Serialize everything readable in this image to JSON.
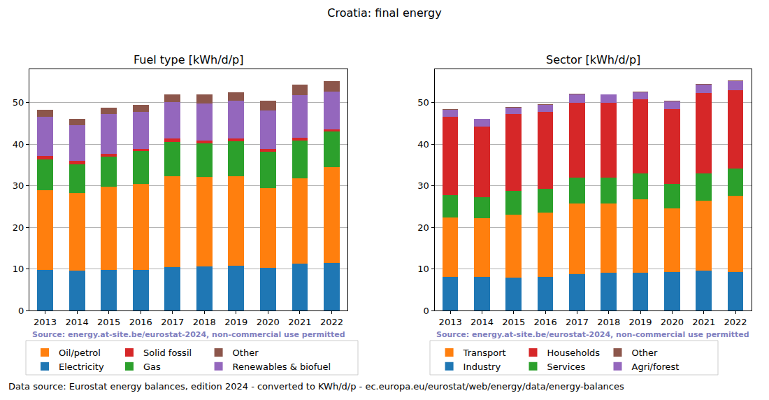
{
  "title": "Croatia: final energy",
  "footer": "Data source: Eurostat energy balances, edition 2024 - converted to KWh/d/p - ec.europa.eu/eurostat/web/energy/data/energy-balances",
  "chart_data": [
    {
      "type": "bar",
      "title": "Fuel type [kWh/d/p]",
      "stacked": true,
      "grid": true,
      "annotations": [
        "Source: energy.at-site.be/eurostat-2024, non-commercial use permitted"
      ],
      "categories": [
        "2013",
        "2014",
        "2015",
        "2016",
        "2017",
        "2018",
        "2019",
        "2020",
        "2021",
        "2022"
      ],
      "ylim": [
        0,
        58
      ],
      "yticks": [
        0,
        10,
        20,
        30,
        40,
        50
      ],
      "series": [
        {
          "name": "Electricity",
          "color": "#1f77b4",
          "values": [
            9.8,
            9.6,
            9.8,
            9.8,
            10.5,
            10.6,
            10.8,
            10.2,
            11.2,
            11.4
          ]
        },
        {
          "name": "Oil/petrol",
          "color": "#ff7f0e",
          "values": [
            19.1,
            18.6,
            20.0,
            20.6,
            21.8,
            21.5,
            21.4,
            19.2,
            20.6,
            23.0
          ]
        },
        {
          "name": "Gas",
          "color": "#2ca02c",
          "values": [
            7.4,
            7.0,
            7.2,
            7.9,
            8.3,
            8.1,
            8.5,
            8.7,
            9.0,
            8.6
          ]
        },
        {
          "name": "Solid fossil",
          "color": "#d62728",
          "values": [
            0.8,
            0.8,
            0.7,
            0.6,
            0.7,
            0.7,
            0.7,
            0.8,
            0.7,
            0.6
          ]
        },
        {
          "name": "Renewables & biofuel",
          "color": "#9467bd",
          "values": [
            9.4,
            8.5,
            9.5,
            8.8,
            8.8,
            8.9,
            9.1,
            9.1,
            10.3,
            9.1
          ]
        },
        {
          "name": "Other",
          "color": "#8c564b",
          "values": [
            1.8,
            1.5,
            1.6,
            1.8,
            1.9,
            2.1,
            2.0,
            2.4,
            2.5,
            2.5
          ]
        }
      ]
    },
    {
      "type": "bar",
      "title": "Sector [kWh/d/p]",
      "stacked": true,
      "grid": true,
      "annotations": [
        "Source: energy.at-site.be/eurostat-2024, non-commercial use permitted"
      ],
      "categories": [
        "2013",
        "2014",
        "2015",
        "2016",
        "2017",
        "2018",
        "2019",
        "2020",
        "2021",
        "2022"
      ],
      "ylim": [
        0,
        58
      ],
      "yticks": [
        0,
        10,
        20,
        30,
        40,
        50
      ],
      "series": [
        {
          "name": "Industry",
          "color": "#1f77b4",
          "values": [
            8.1,
            8.1,
            7.9,
            8.1,
            8.8,
            9.0,
            9.0,
            9.3,
            9.5,
            9.2
          ]
        },
        {
          "name": "Transport",
          "color": "#ff7f0e",
          "values": [
            14.3,
            14.1,
            15.1,
            15.4,
            16.9,
            16.7,
            17.7,
            15.2,
            16.9,
            18.3
          ]
        },
        {
          "name": "Services",
          "color": "#2ca02c",
          "values": [
            5.4,
            5.1,
            5.7,
            5.8,
            6.2,
            6.3,
            6.3,
            6.0,
            6.6,
            6.7
          ]
        },
        {
          "name": "Households",
          "color": "#d62728",
          "values": [
            18.8,
            16.9,
            18.6,
            18.5,
            18.1,
            17.9,
            17.8,
            17.9,
            19.3,
            18.8
          ]
        },
        {
          "name": "Agri/forest",
          "color": "#9467bd",
          "values": [
            1.7,
            1.8,
            1.5,
            1.7,
            2.0,
            2.0,
            1.7,
            1.9,
            2.0,
            2.2
          ]
        },
        {
          "name": "Other",
          "color": "#8c564b",
          "values": [
            0.1,
            0.1,
            0.1,
            0.1,
            0.1,
            0.1,
            0.1,
            0.1,
            0.1,
            0.1
          ]
        }
      ]
    }
  ]
}
